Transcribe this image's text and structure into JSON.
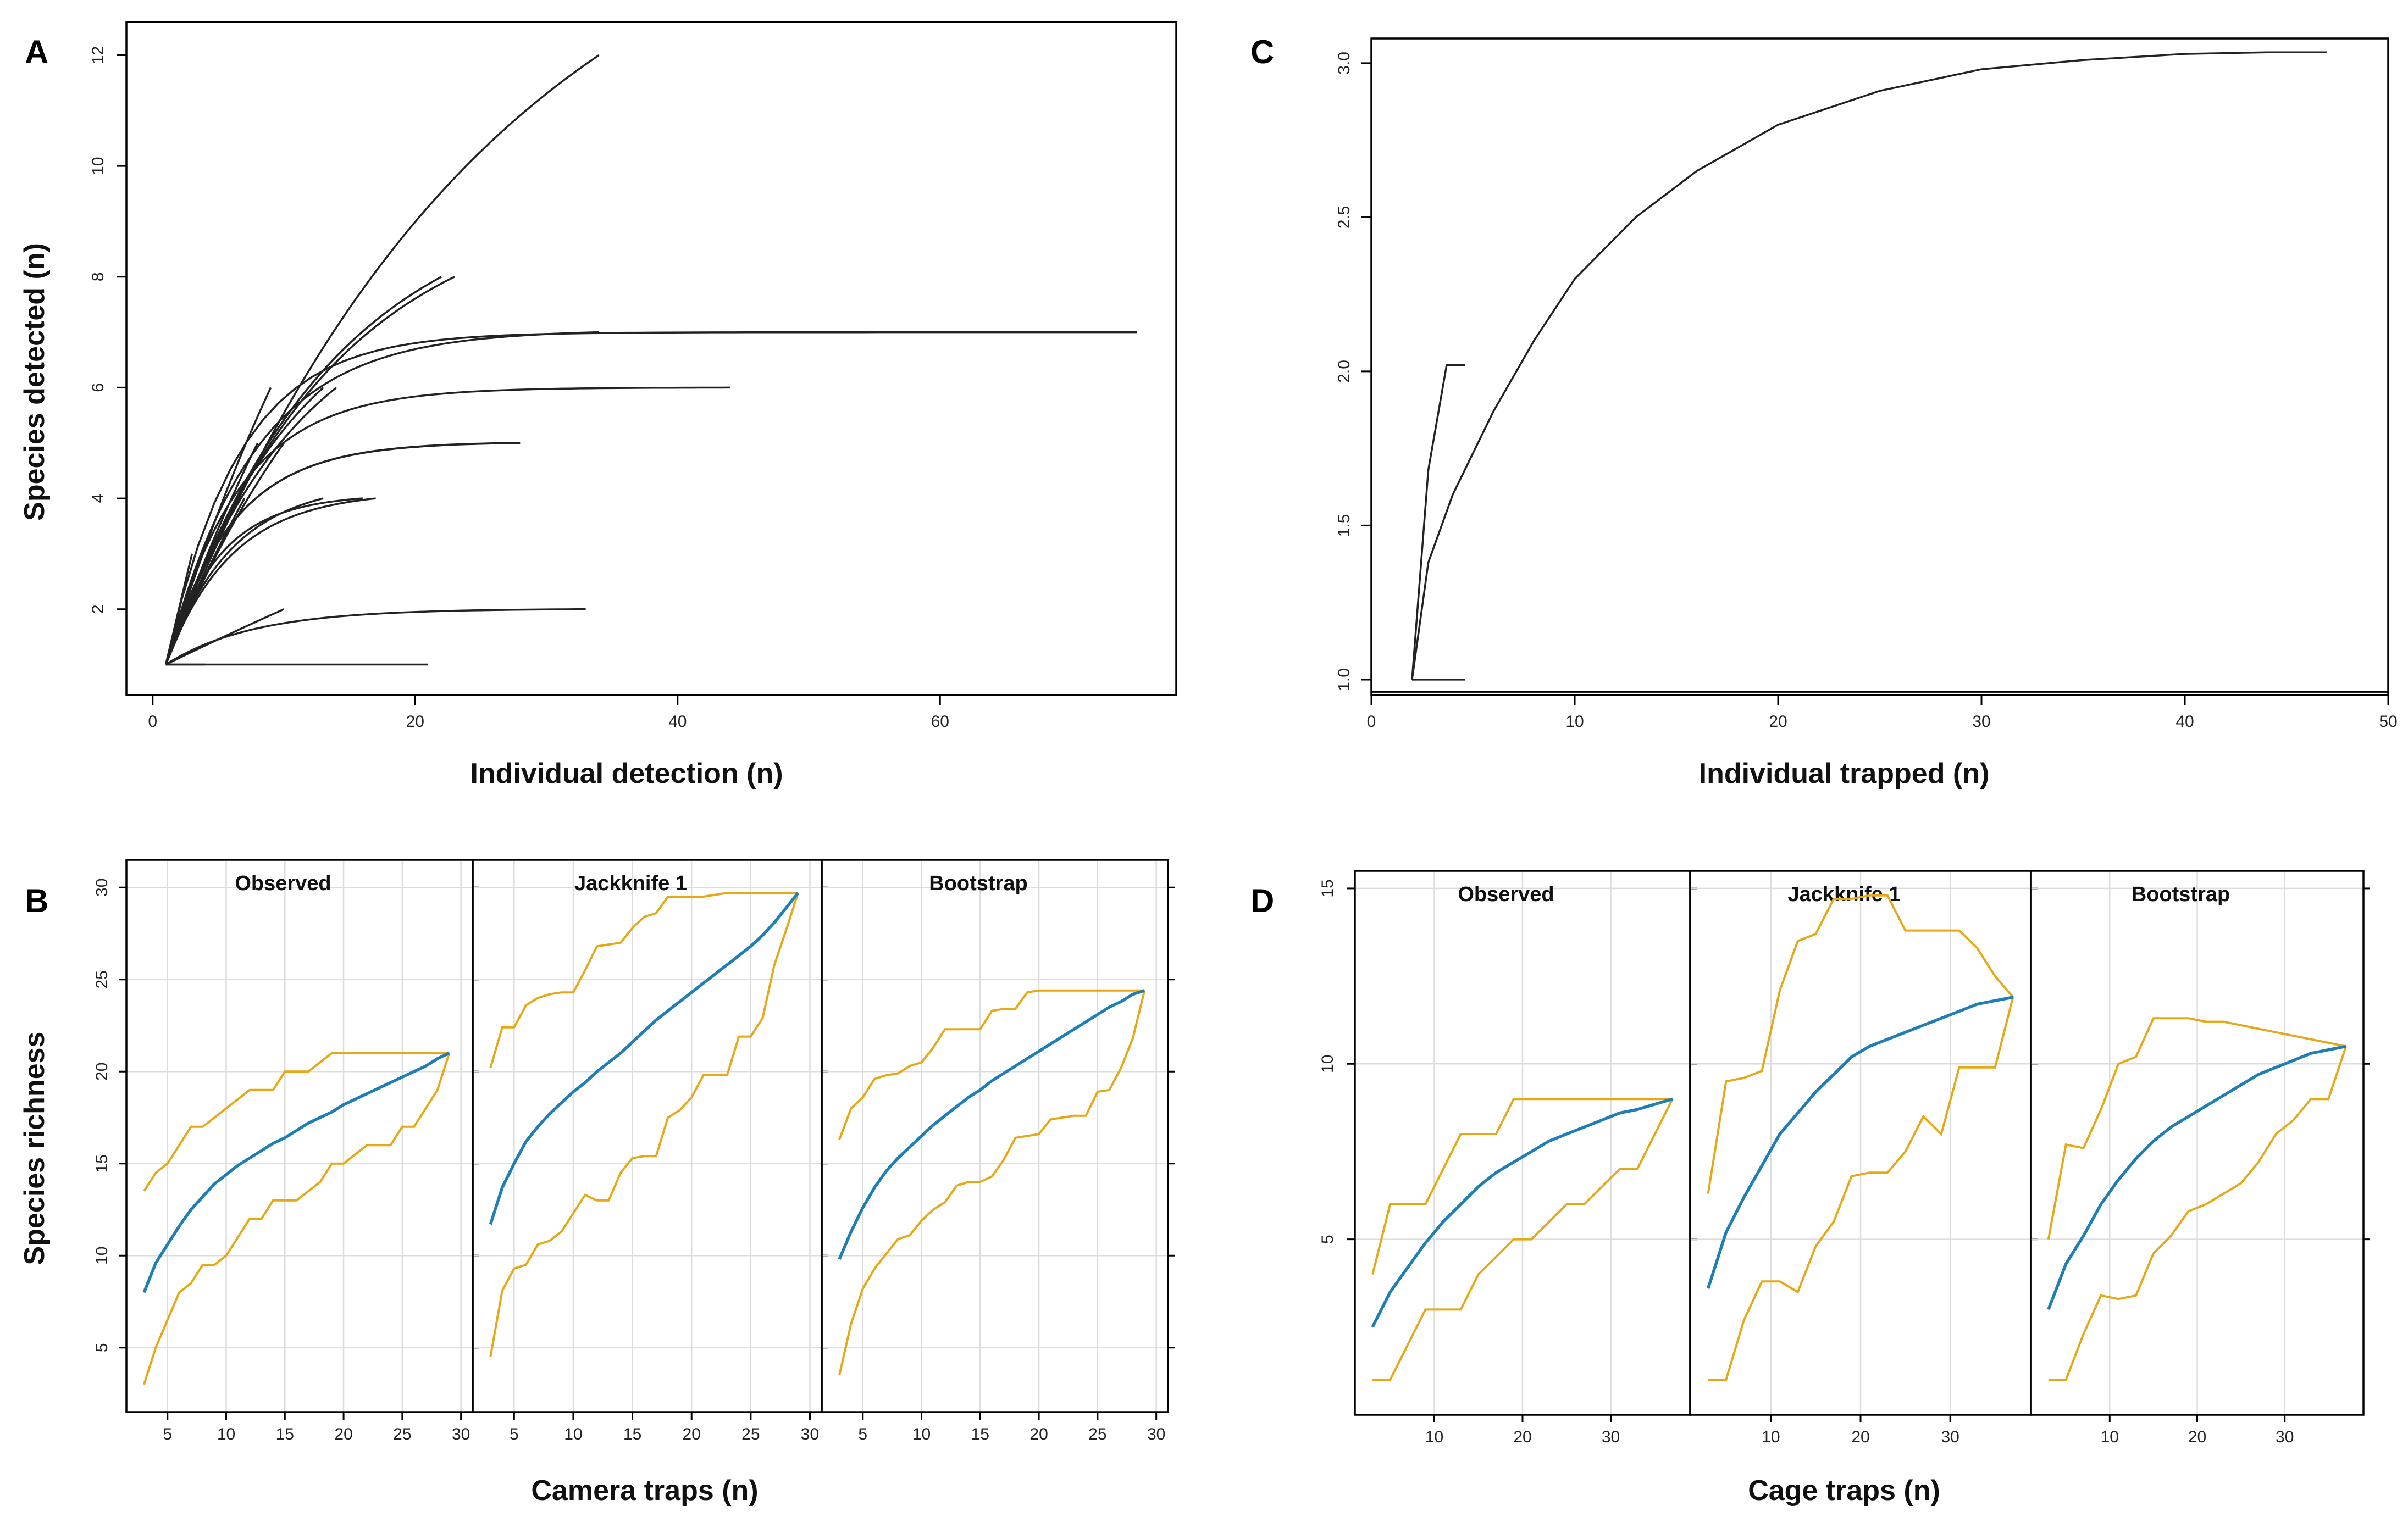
{
  "colors": {
    "bound": "#E6A817",
    "mean": "#1F7FB5",
    "ink": "#222222"
  },
  "chart_data": [
    {
      "id": "A",
      "panel_label": "A",
      "type": "line",
      "xlabel": "Individual detection (n)",
      "ylabel": "Species detected (n)",
      "xlim": [
        -2,
        78
      ],
      "ylim": [
        0.45,
        12.6
      ],
      "xticks": [
        0,
        20,
        40,
        60
      ],
      "yticks": [
        2,
        4,
        6,
        8,
        10,
        12
      ],
      "series": [
        {
          "name": "c1",
          "x_end": 34,
          "y_end": 12,
          "k": 0.04
        },
        {
          "name": "c2",
          "x_end": 75,
          "y_end": 7,
          "k": 0.18
        },
        {
          "name": "c3",
          "x_end": 44,
          "y_end": 6,
          "k": 0.18
        },
        {
          "name": "c4",
          "x_end": 34,
          "y_end": 7,
          "k": 0.15
        },
        {
          "name": "c5",
          "x_end": 23,
          "y_end": 8,
          "k": 0.08
        },
        {
          "name": "c6",
          "x_end": 22,
          "y_end": 8,
          "k": 0.08
        },
        {
          "name": "c7",
          "x_end": 28,
          "y_end": 5,
          "k": 0.2
        },
        {
          "name": "c8",
          "x_end": 27,
          "y_end": 5,
          "k": 0.2
        },
        {
          "name": "c9",
          "x_end": 17,
          "y_end": 4,
          "k": 0.2
        },
        {
          "name": "c10",
          "x_end": 16,
          "y_end": 4,
          "k": 0.25
        },
        {
          "name": "c11",
          "x_end": 14,
          "y_end": 6,
          "k": 0.1
        },
        {
          "name": "c12",
          "x_end": 13,
          "y_end": 6,
          "k": 0.1
        },
        {
          "name": "c13",
          "x_end": 9,
          "y_end": 6,
          "k": 0.05
        },
        {
          "name": "c14",
          "x_end": 10,
          "y_end": 5,
          "k": 0.06
        },
        {
          "name": "c15",
          "x_end": 8,
          "y_end": 5,
          "k": 0.05
        },
        {
          "name": "c16",
          "x_end": 7,
          "y_end": 4,
          "k": 0.05
        },
        {
          "name": "c17",
          "x_end": 13,
          "y_end": 4,
          "k": 0.2
        },
        {
          "name": "c18",
          "x_end": 3,
          "y_end": 3,
          "k": 0.01
        },
        {
          "name": "c19",
          "x_end": 10,
          "y_end": 2,
          "k": 0.01
        },
        {
          "name": "c20",
          "x_end": 33,
          "y_end": 2,
          "k": 0.15
        },
        {
          "name": "c21",
          "x_end": 21,
          "y_end": 1,
          "k": 0.01
        },
        {
          "name": "c22",
          "x_end": 4,
          "y_end": 1,
          "k": 0.01
        }
      ]
    },
    {
      "id": "C",
      "panel_label": "C",
      "type": "line",
      "xlabel": "Individual trapped (n)",
      "ylabel": "",
      "xlim": [
        0,
        50
      ],
      "ylim": [
        0.95,
        3.08
      ],
      "xticks": [
        0,
        10,
        20,
        30,
        40,
        50
      ],
      "yticks": [
        "1.0",
        "1.5",
        "2.0",
        "2.5",
        "3.0"
      ],
      "baseline": 0.96,
      "series": [
        {
          "name": "accumulation",
          "x": [
            2,
            2.8,
            4,
            6,
            8,
            10,
            13,
            16,
            20,
            25,
            30,
            35,
            40,
            44,
            47
          ],
          "y": [
            1.0,
            1.38,
            1.6,
            1.87,
            2.1,
            2.3,
            2.5,
            2.65,
            2.8,
            2.91,
            2.98,
            3.01,
            3.03,
            3.035,
            3.035
          ]
        },
        {
          "name": "site2",
          "x": [
            2,
            2.8,
            3.7,
            4.6
          ],
          "y": [
            1.0,
            1.68,
            2.02,
            2.02
          ]
        },
        {
          "name": "site3",
          "x": [
            2,
            4.6
          ],
          "y": [
            1.0,
            1.0
          ]
        }
      ]
    },
    {
      "id": "B",
      "panel_label": "B",
      "type": "line",
      "xlabel": "Camera traps (n)",
      "ylabel": "Species richness",
      "xlim": [
        1.5,
        31
      ],
      "ylim": [
        1.5,
        31.5
      ],
      "xticks": [
        5,
        10,
        15,
        20,
        25,
        30
      ],
      "yticks": [
        5,
        10,
        15,
        20,
        25,
        30
      ],
      "facets": [
        {
          "title": "Observed",
          "x": [
            3,
            4,
            5,
            6,
            7,
            8,
            9,
            10,
            11,
            12,
            13,
            14,
            15,
            16,
            17,
            18,
            19,
            20,
            21,
            22,
            23,
            24,
            25,
            26,
            27,
            28,
            29
          ],
          "mean": [
            8,
            9.6,
            10.6,
            11.6,
            12.5,
            13.2,
            13.9,
            14.4,
            14.9,
            15.3,
            15.7,
            16.1,
            16.4,
            16.8,
            17.2,
            17.5,
            17.8,
            18.2,
            18.5,
            18.8,
            19.1,
            19.4,
            19.7,
            20,
            20.3,
            20.7,
            21
          ],
          "upper": [
            13.5,
            14.5,
            15,
            16,
            17,
            17,
            17.5,
            18,
            18.5,
            19,
            19,
            19,
            20,
            20,
            20,
            20.5,
            21,
            21,
            21,
            21,
            21,
            21,
            21,
            21,
            21,
            21,
            21
          ],
          "lower": [
            3,
            5,
            6.5,
            8,
            8.5,
            9.5,
            9.5,
            10,
            11,
            12,
            12,
            13,
            13,
            13,
            13.5,
            14,
            15,
            15,
            15.5,
            16,
            16,
            16,
            17,
            17,
            18,
            19,
            21
          ]
        },
        {
          "title": "Jackknife 1",
          "x": [
            3,
            4,
            5,
            6,
            7,
            8,
            9,
            10,
            11,
            12,
            13,
            14,
            15,
            16,
            17,
            18,
            19,
            20,
            21,
            22,
            23,
            24,
            25,
            26,
            27,
            28,
            29
          ],
          "mean": [
            11.7,
            13.7,
            15,
            16.2,
            17,
            17.7,
            18.3,
            18.9,
            19.4,
            20,
            20.5,
            21,
            21.6,
            22.2,
            22.8,
            23.3,
            23.8,
            24.3,
            24.8,
            25.3,
            25.8,
            26.3,
            26.8,
            27.4,
            28.1,
            28.9,
            29.7
          ],
          "upper": [
            20.2,
            22.4,
            22.4,
            23.6,
            24,
            24.2,
            24.3,
            24.3,
            25.5,
            26.8,
            26.9,
            27,
            27.8,
            28.4,
            28.6,
            29.5,
            29.5,
            29.5,
            29.5,
            29.6,
            29.7,
            29.7,
            29.7,
            29.7,
            29.7,
            29.7,
            29.7
          ],
          "lower": [
            4.5,
            8.1,
            9.3,
            9.5,
            10.6,
            10.8,
            11.3,
            12.3,
            13.3,
            13,
            13,
            14.5,
            15.3,
            15.4,
            15.4,
            17.5,
            17.9,
            18.6,
            19.8,
            19.8,
            19.8,
            21.9,
            21.9,
            22.9,
            25.8,
            27.7,
            29.7
          ]
        },
        {
          "title": "Bootstrap",
          "x": [
            3,
            4,
            5,
            6,
            7,
            8,
            9,
            10,
            11,
            12,
            13,
            14,
            15,
            16,
            17,
            18,
            19,
            20,
            21,
            22,
            23,
            24,
            25,
            26,
            27,
            28,
            29
          ],
          "mean": [
            9.8,
            11.3,
            12.6,
            13.7,
            14.6,
            15.3,
            15.9,
            16.5,
            17.1,
            17.6,
            18.1,
            18.6,
            19,
            19.5,
            19.9,
            20.3,
            20.7,
            21.1,
            21.5,
            21.9,
            22.3,
            22.7,
            23.1,
            23.5,
            23.8,
            24.2,
            24.4
          ],
          "upper": [
            16.3,
            18,
            18.6,
            19.6,
            19.8,
            19.9,
            20.3,
            20.5,
            21.3,
            22.3,
            22.3,
            22.3,
            22.3,
            23.3,
            23.4,
            23.4,
            24.3,
            24.4,
            24.4,
            24.4,
            24.4,
            24.4,
            24.4,
            24.4,
            24.4,
            24.4,
            24.4
          ],
          "lower": [
            3.5,
            6.3,
            8.2,
            9.3,
            10.1,
            10.9,
            11.1,
            11.9,
            12.5,
            12.9,
            13.8,
            14,
            14,
            14.3,
            15.2,
            16.4,
            16.5,
            16.6,
            17.4,
            17.5,
            17.6,
            17.6,
            18.9,
            19,
            20.2,
            21.8,
            24.4
          ]
        }
      ]
    },
    {
      "id": "D",
      "panel_label": "D",
      "type": "line",
      "xlabel": "Cage traps (n)",
      "ylabel": "",
      "xlim": [
        1,
        39
      ],
      "ylim": [
        0,
        15.5
      ],
      "xticks": [
        10,
        20,
        30
      ],
      "yticks": [
        5,
        10,
        15
      ],
      "facets": [
        {
          "title": "Observed",
          "x": [
            3,
            5,
            7,
            9,
            11,
            13,
            15,
            17,
            19,
            21,
            23,
            25,
            27,
            29,
            31,
            33,
            35,
            37
          ],
          "mean": [
            2.5,
            3.5,
            4.2,
            4.9,
            5.5,
            6,
            6.5,
            6.9,
            7.2,
            7.5,
            7.8,
            8,
            8.2,
            8.4,
            8.6,
            8.7,
            8.85,
            9
          ],
          "upper": [
            4,
            6,
            6,
            6,
            7,
            8,
            8,
            8,
            9,
            9,
            9,
            9,
            9,
            9,
            9,
            9,
            9,
            9
          ],
          "lower": [
            1,
            1,
            2,
            3,
            3,
            3,
            4,
            4.5,
            5,
            5,
            5.5,
            6,
            6,
            6.5,
            7,
            7,
            8,
            9
          ]
        },
        {
          "title": "Jackknife 1",
          "x": [
            3,
            5,
            7,
            9,
            11,
            13,
            15,
            17,
            19,
            21,
            23,
            25,
            27,
            29,
            31,
            33,
            35,
            37
          ],
          "mean": [
            3.6,
            5.2,
            6.2,
            7.1,
            8,
            8.6,
            9.2,
            9.7,
            10.2,
            10.5,
            10.7,
            10.9,
            11.1,
            11.3,
            11.5,
            11.7,
            11.8,
            11.9
          ],
          "upper": [
            6.3,
            9.5,
            9.6,
            9.8,
            12.1,
            13.5,
            13.7,
            14.7,
            14.7,
            14.8,
            14.8,
            13.8,
            13.8,
            13.8,
            13.8,
            13.3,
            12.5,
            11.9
          ],
          "lower": [
            1,
            1,
            2.7,
            3.8,
            3.8,
            3.5,
            4.8,
            5.5,
            6.8,
            6.9,
            6.9,
            7.5,
            8.5,
            8,
            9.9,
            9.9,
            9.9,
            11.9
          ]
        },
        {
          "title": "Bootstrap",
          "x": [
            3,
            5,
            7,
            9,
            11,
            13,
            15,
            17,
            19,
            21,
            23,
            25,
            27,
            29,
            31,
            33,
            35,
            37
          ],
          "mean": [
            3,
            4.3,
            5.1,
            6,
            6.7,
            7.3,
            7.8,
            8.2,
            8.5,
            8.8,
            9.1,
            9.4,
            9.7,
            9.9,
            10.1,
            10.3,
            10.4,
            10.5
          ],
          "upper": [
            5,
            7.7,
            7.6,
            8.7,
            10,
            10.2,
            11.3,
            11.3,
            11.3,
            11.2,
            11.2,
            11.1,
            11,
            10.9,
            10.8,
            10.7,
            10.6,
            10.5
          ],
          "lower": [
            1,
            1,
            2.3,
            3.4,
            3.3,
            3.4,
            4.6,
            5.1,
            5.8,
            6,
            6.3,
            6.6,
            7.2,
            8,
            8.4,
            9,
            9,
            10.5
          ]
        }
      ]
    }
  ]
}
